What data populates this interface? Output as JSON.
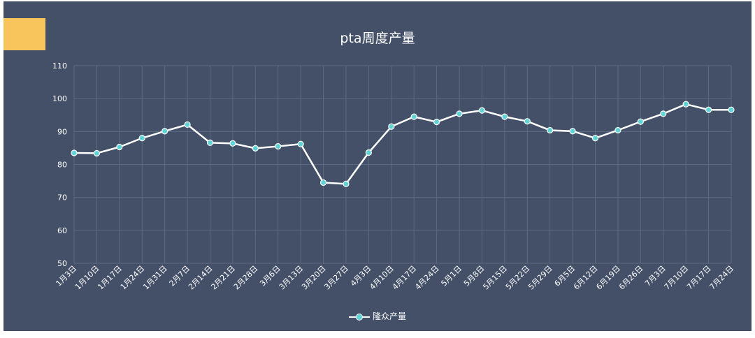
{
  "chart_data": {
    "type": "line",
    "title": "pta周度产量",
    "categories": [
      "1月3日",
      "1月10日",
      "1月17日",
      "1月24日",
      "1月31日",
      "2月7日",
      "2月14日",
      "2月21日",
      "2月28日",
      "3月6日",
      "3月13日",
      "3月20日",
      "3月27日",
      "4月3日",
      "4月10日",
      "4月17日",
      "4月24日",
      "5月1日",
      "5月8日",
      "5月15日",
      "5月22日",
      "5月29日",
      "6月5日",
      "6月12日",
      "6月19日",
      "6月26日",
      "7月3日",
      "7月10日",
      "7月17日",
      "7月24日"
    ],
    "series": [
      {
        "name": "隆众产量",
        "values": [
          83.5,
          83.4,
          85.3,
          88.0,
          90.1,
          92.1,
          86.6,
          86.4,
          84.9,
          85.5,
          86.2,
          74.5,
          74.1,
          83.6,
          91.5,
          94.5,
          92.9,
          95.4,
          96.4,
          94.5,
          93.1,
          90.4,
          90.1,
          88.0,
          90.4,
          93.0,
          95.4,
          98.3,
          96.6,
          96.6
        ]
      }
    ],
    "ylim": [
      50,
      110
    ],
    "yticks": [
      50,
      60,
      70,
      80,
      90,
      100,
      110
    ],
    "grid": true,
    "legend": "bottom-center",
    "colors": {
      "background": "#435068",
      "line": "#ffffff",
      "marker": "#5fd3d6",
      "grid": "#5c6a80",
      "accent": "#f8c45c"
    }
  }
}
